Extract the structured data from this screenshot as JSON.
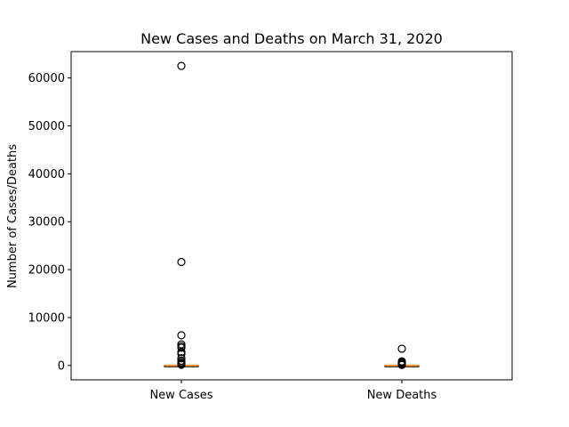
{
  "chart_data": {
    "type": "box",
    "title": "New Cases and Deaths on March 31, 2020",
    "xlabel": "",
    "ylabel": "Number of Cases/Deaths",
    "ylim": [
      -3000,
      65500
    ],
    "yticks": [
      0,
      10000,
      20000,
      30000,
      40000,
      50000,
      60000
    ],
    "grid": false,
    "categories": [
      "New Cases",
      "New Deaths"
    ],
    "series": [
      {
        "category": "New Cases",
        "median": 0,
        "q1": 0,
        "q3": 5,
        "whisker_low": 0,
        "whisker_high": 10,
        "outliers": [
          62500,
          21600,
          6300,
          4400,
          4000,
          3700,
          2800,
          2400,
          1500,
          1000,
          700,
          450,
          300,
          150
        ]
      },
      {
        "category": "New Deaths",
        "median": 0,
        "q1": 0,
        "q3": 1,
        "whisker_low": 0,
        "whisker_high": 2,
        "outliers": [
          3500,
          850,
          650,
          500,
          350,
          200,
          100
        ]
      }
    ],
    "colors": {
      "box": "#000000",
      "median": "#ff7f0e",
      "outlier": "#000000"
    }
  }
}
